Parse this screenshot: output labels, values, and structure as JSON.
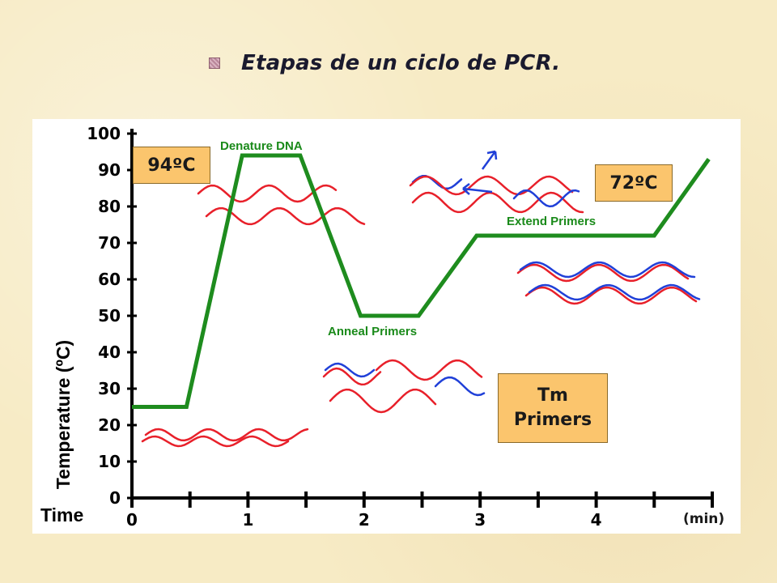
{
  "slide": {
    "title": "Etapas de un ciclo de PCR.",
    "bullet_icon": "bullet-square-icon"
  },
  "annotations": {
    "box_94": "94ºC",
    "box_72": "72ºC",
    "box_tm": "Tm Primers",
    "unit": "(min)"
  },
  "chart_data": {
    "type": "line",
    "xlabel": "Time",
    "ylabel": "Temperature (ºC)",
    "xlim": [
      0,
      5
    ],
    "ylim": [
      0,
      100
    ],
    "x_tick_labels": [
      "0",
      "1",
      "2",
      "3",
      "4"
    ],
    "x_ticks": [
      0,
      0.5,
      1,
      1.5,
      2,
      2.5,
      3,
      3.5,
      4,
      4.5,
      5
    ],
    "y_tick_labels": [
      "0",
      "10",
      "20",
      "30",
      "40",
      "50",
      "60",
      "70",
      "80",
      "90",
      "100"
    ],
    "series": [
      {
        "x": [
          0,
          0.47,
          0.95,
          1.45,
          1.97,
          2.47,
          2.97,
          4.5,
          4.97
        ],
        "y": [
          25,
          25,
          94,
          94,
          50,
          50,
          72,
          72,
          93
        ],
        "color": "#1e8c1e"
      }
    ],
    "phase_labels": [
      "Denature DNA",
      "Anneal Primers",
      "Extend Primers"
    ],
    "strand_colors": {
      "template": "#e8202a",
      "primer": "#2040d8",
      "curve": "#1e8c1e"
    }
  }
}
